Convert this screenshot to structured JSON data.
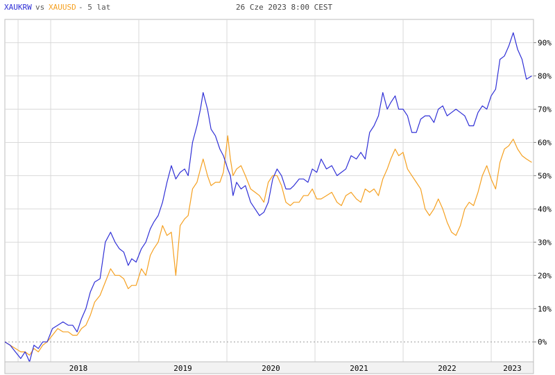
{
  "header": {
    "series_a": "XAUKRW",
    "vs": "vs",
    "series_b": "XAUUSD",
    "period": "- 5 lat",
    "timestamp": "26 Cze 2023 8:00 CEST"
  },
  "colors": {
    "series_a": "#2f2fd6",
    "series_b": "#f5a020",
    "grid": "#d9d9d9",
    "zero_line": "#9a9a9a",
    "axis_band": "#f2f2f2"
  },
  "chart_data": {
    "type": "line",
    "x_unit": "year",
    "xlim": [
      2017.48,
      2023.48
    ],
    "ylim": [
      -6,
      97
    ],
    "y_tick_values": [
      0,
      10,
      20,
      30,
      40,
      50,
      60,
      70,
      80,
      90
    ],
    "y_tick_labels": [
      "0%",
      "10%",
      "20%",
      "30%",
      "40%",
      "50%",
      "60%",
      "70%",
      "80%",
      "90%"
    ],
    "x_tick_labels": [
      "2018",
      "2019",
      "2020",
      "2021",
      "2022",
      "2023"
    ],
    "x_gridlines": [
      2017.63,
      2018.0,
      2019.0,
      2020.0,
      2021.0,
      2022.0,
      2023.0
    ],
    "grid": true,
    "zero_line": "dashed",
    "series": [
      {
        "name": "XAUKRW",
        "x": [
          2017.48,
          2017.54,
          2017.6,
          2017.66,
          2017.71,
          2017.76,
          2017.81,
          2017.86,
          2017.91,
          2017.96,
          2018.02,
          2018.08,
          2018.14,
          2018.2,
          2018.25,
          2018.3,
          2018.35,
          2018.4,
          2018.45,
          2018.5,
          2018.56,
          2018.62,
          2018.68,
          2018.73,
          2018.78,
          2018.83,
          2018.88,
          2018.92,
          2018.97,
          2019.03,
          2019.08,
          2019.13,
          2019.17,
          2019.22,
          2019.27,
          2019.32,
          2019.37,
          2019.42,
          2019.47,
          2019.52,
          2019.56,
          2019.61,
          2019.66,
          2019.7,
          2019.73,
          2019.78,
          2019.82,
          2019.87,
          2019.92,
          2019.96,
          2020.01,
          2020.04,
          2020.07,
          2020.11,
          2020.16,
          2020.21,
          2020.27,
          2020.32,
          2020.37,
          2020.42,
          2020.47,
          2020.52,
          2020.57,
          2020.62,
          2020.67,
          2020.72,
          2020.76,
          2020.82,
          2020.87,
          2020.92,
          2020.97,
          2021.02,
          2021.07,
          2021.13,
          2021.19,
          2021.25,
          2021.3,
          2021.35,
          2021.41,
          2021.47,
          2021.52,
          2021.57,
          2021.62,
          2021.67,
          2021.72,
          2021.77,
          2021.82,
          2021.86,
          2021.91,
          2021.95,
          2022.0,
          2022.05,
          2022.1,
          2022.15,
          2022.2,
          2022.25,
          2022.3,
          2022.35,
          2022.4,
          2022.45,
          2022.5,
          2022.55,
          2022.6,
          2022.65,
          2022.7,
          2022.75,
          2022.8,
          2022.85,
          2022.9,
          2022.95,
          2023.0,
          2023.05,
          2023.1,
          2023.15,
          2023.2,
          2023.25,
          2023.3,
          2023.35,
          2023.4,
          2023.46
        ],
        "values": [
          0,
          -1,
          -3,
          -5,
          -3,
          -6,
          -1,
          -2,
          0,
          0,
          4,
          5,
          6,
          5,
          5,
          3,
          7,
          10,
          15,
          18,
          19,
          30,
          33,
          30,
          28,
          27,
          23,
          25,
          24,
          28,
          30,
          34,
          36,
          38,
          42,
          48,
          53,
          49,
          51,
          52,
          50,
          60,
          65,
          70,
          75,
          70,
          64,
          62,
          58,
          56,
          52,
          50,
          44,
          48,
          46,
          47,
          42,
          40,
          38,
          39,
          42,
          49,
          52,
          50,
          46,
          46,
          47,
          49,
          49,
          48,
          52,
          51,
          55,
          52,
          53,
          50,
          51,
          52,
          56,
          55,
          57,
          55,
          63,
          65,
          68,
          75,
          70,
          72,
          74,
          70,
          70,
          68,
          63,
          63,
          67,
          68,
          68,
          66,
          70,
          71,
          68,
          69,
          70,
          69,
          68,
          65,
          65,
          69,
          71,
          70,
          74,
          76,
          85,
          86,
          89,
          93,
          88,
          85,
          79,
          80
        ]
      },
      {
        "name": "XAUUSD",
        "x": [
          2017.48,
          2017.54,
          2017.6,
          2017.66,
          2017.71,
          2017.76,
          2017.81,
          2017.86,
          2017.91,
          2017.96,
          2018.02,
          2018.08,
          2018.14,
          2018.2,
          2018.25,
          2018.3,
          2018.35,
          2018.4,
          2018.45,
          2018.5,
          2018.56,
          2018.62,
          2018.68,
          2018.73,
          2018.78,
          2018.83,
          2018.88,
          2018.92,
          2018.97,
          2019.03,
          2019.08,
          2019.13,
          2019.17,
          2019.22,
          2019.27,
          2019.32,
          2019.37,
          2019.42,
          2019.47,
          2019.52,
          2019.56,
          2019.61,
          2019.66,
          2019.7,
          2019.73,
          2019.78,
          2019.82,
          2019.87,
          2019.92,
          2019.96,
          2020.01,
          2020.04,
          2020.07,
          2020.11,
          2020.16,
          2020.21,
          2020.27,
          2020.32,
          2020.37,
          2020.42,
          2020.47,
          2020.52,
          2020.57,
          2020.62,
          2020.67,
          2020.72,
          2020.76,
          2020.82,
          2020.87,
          2020.92,
          2020.97,
          2021.02,
          2021.07,
          2021.13,
          2021.19,
          2021.25,
          2021.3,
          2021.35,
          2021.41,
          2021.47,
          2021.52,
          2021.57,
          2021.62,
          2021.67,
          2021.72,
          2021.77,
          2021.82,
          2021.86,
          2021.91,
          2021.95,
          2022.0,
          2022.05,
          2022.1,
          2022.15,
          2022.2,
          2022.25,
          2022.3,
          2022.35,
          2022.4,
          2022.45,
          2022.5,
          2022.55,
          2022.6,
          2022.65,
          2022.7,
          2022.75,
          2022.8,
          2022.85,
          2022.9,
          2022.95,
          2023.0,
          2023.05,
          2023.1,
          2023.15,
          2023.2,
          2023.25,
          2023.3,
          2023.35,
          2023.4,
          2023.46
        ],
        "values": [
          0,
          -1,
          -2,
          -3,
          -3,
          -4,
          -2,
          -3,
          -1,
          0,
          2,
          4,
          3,
          3,
          2,
          2,
          4,
          5,
          8,
          12,
          14,
          18,
          22,
          20,
          20,
          19,
          16,
          17,
          17,
          22,
          20,
          26,
          28,
          30,
          35,
          32,
          33,
          20,
          35,
          37,
          38,
          46,
          48,
          52,
          55,
          50,
          47,
          48,
          48,
          51,
          62,
          55,
          50,
          52,
          53,
          50,
          46,
          45,
          44,
          42,
          48,
          50,
          50,
          47,
          42,
          41,
          42,
          42,
          44,
          44,
          46,
          43,
          43,
          44,
          45,
          42,
          41,
          44,
          45,
          43,
          42,
          46,
          45,
          46,
          44,
          49,
          52,
          55,
          58,
          56,
          57,
          52,
          50,
          48,
          46,
          40,
          38,
          40,
          43,
          40,
          36,
          33,
          32,
          35,
          40,
          42,
          41,
          45,
          50,
          53,
          49,
          46,
          54,
          58,
          59,
          61,
          58,
          56,
          55,
          54
        ]
      }
    ]
  }
}
